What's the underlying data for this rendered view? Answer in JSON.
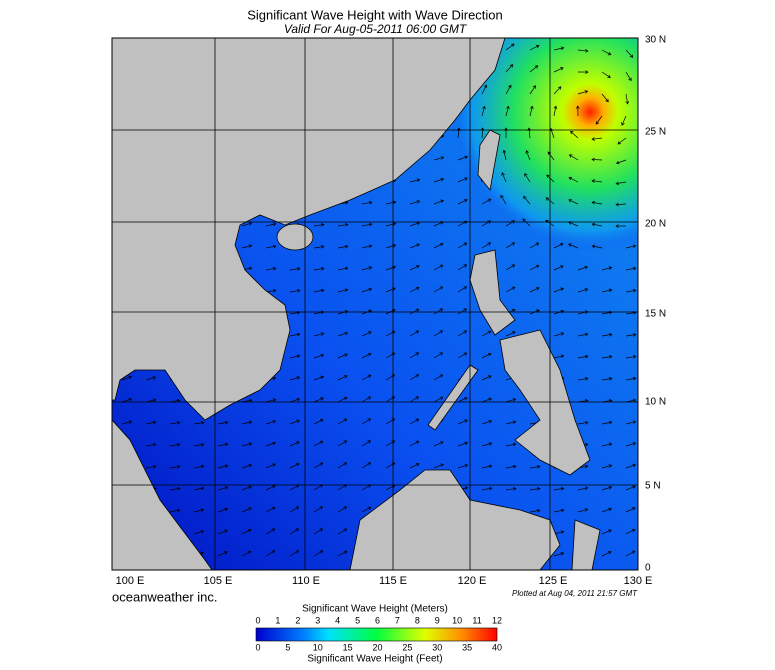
{
  "header": {
    "title": "Significant Wave Height with Wave Direction",
    "subtitle": "Valid For Aug-05-2011 06:00 GMT"
  },
  "map": {
    "lat_labels": [
      "30 N",
      "25 N",
      "20 N",
      "15 N",
      "10 N",
      "5 N",
      "0"
    ],
    "lon_labels": [
      "100 E",
      "105 E",
      "110 E",
      "115 E",
      "120 E",
      "125 E",
      "130 E"
    ]
  },
  "footer": {
    "brand": "oceanweather inc.",
    "plotted": "Plotted at Aug 04, 2011 21:57 GMT"
  },
  "colorbar": {
    "meters_title": "Significant Wave Height (Meters)",
    "meters_ticks": [
      0,
      1,
      2,
      3,
      4,
      5,
      6,
      7,
      8,
      9,
      10,
      11,
      12
    ],
    "feet_ticks": [
      0,
      5,
      10,
      15,
      20,
      25,
      30,
      35,
      40
    ],
    "feet_title": "Significant Wave Height (Feet)"
  }
}
